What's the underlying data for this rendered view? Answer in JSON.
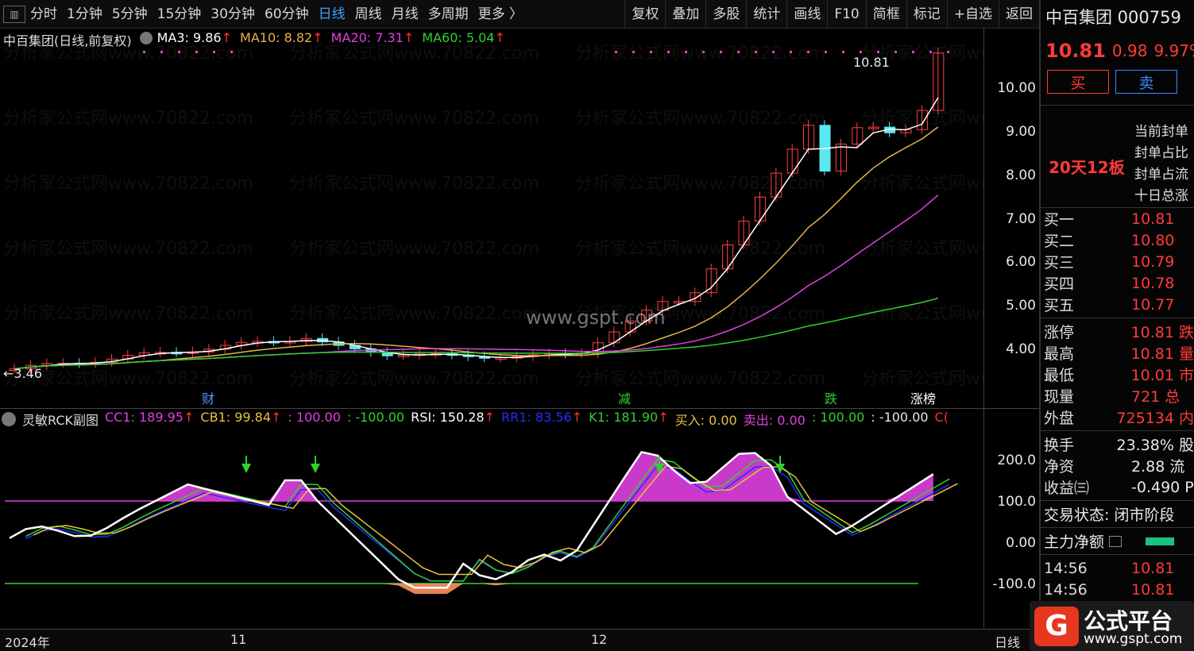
{
  "toolbar": {
    "periods": [
      "分时",
      "1分钟",
      "5分钟",
      "15分钟",
      "30分钟",
      "60分钟",
      "日线",
      "周线",
      "月线",
      "多周期",
      "更多 〉"
    ],
    "active_period": "日线",
    "right_buttons": [
      "复权",
      "叠加",
      "多股",
      "统计",
      "画线",
      "F10",
      "简框",
      "标记",
      "+自选",
      "返回"
    ]
  },
  "main_chart": {
    "title": "中百集团(日线,前复权)",
    "ma": [
      {
        "label": "MA3: 9.86",
        "color": "#ffffff"
      },
      {
        "label": "MA10: 8.82",
        "color": "#e8b14a"
      },
      {
        "label": "MA20: 7.31",
        "color": "#e040e0"
      },
      {
        "label": "MA60: 5.04",
        "color": "#30d030"
      }
    ],
    "arrow": "↑",
    "price_ticks": [
      "10.00",
      "9.00",
      "8.00",
      "7.00",
      "6.00",
      "5.00",
      "4.00"
    ],
    "high_label": "10.81",
    "low_label": "←3.46",
    "center_watermark": "www.gspt.com",
    "markers": [
      {
        "text": "财",
        "color": "#4aa0ff"
      },
      {
        "text": "减",
        "color": "#30d030"
      },
      {
        "text": "跌",
        "color": "#30d030"
      },
      {
        "text": "涨榜",
        "color": "#ffffff"
      }
    ],
    "watermark": "分析家公式网www.70822.com"
  },
  "sub_chart": {
    "title": "灵敏RCK副图",
    "items": [
      {
        "label": "CC1: 189.95",
        "color": "#e040e0",
        "arrow": "↑"
      },
      {
        "label": "CB1: 99.84",
        "color": "#e8c040",
        "arrow": "↑"
      },
      {
        "label": ": 100.00",
        "color": "#e040e0",
        "arrow": ""
      },
      {
        "label": ": -100.00",
        "color": "#30d030",
        "arrow": ""
      },
      {
        "label": "RSI: 150.28",
        "color": "#ffffff",
        "arrow": "↑"
      },
      {
        "label": "RR1: 83.56",
        "color": "#2a2aff",
        "arrow": "↑"
      },
      {
        "label": "K1: 181.90",
        "color": "#30d030",
        "arrow": "↑"
      },
      {
        "label": "买入: 0.00",
        "color": "#e8c040",
        "arrow": ""
      },
      {
        "label": "卖出: 0.00",
        "color": "#e040e0",
        "arrow": ""
      },
      {
        "label": ": 100.00",
        "color": "#30d030",
        "arrow": ""
      },
      {
        "label": ": -100.00",
        "color": "#e8e8e8",
        "arrow": ""
      },
      {
        "label": "C(",
        "color": "#ff3030",
        "arrow": ""
      }
    ],
    "ticks": [
      "200.0",
      "100.0",
      "0.00",
      "-100.0"
    ]
  },
  "bottom": {
    "year": "2024年",
    "m1": "11",
    "m2": "12",
    "period": "日线"
  },
  "quote": {
    "name": "中百集团 000759",
    "price": "10.81",
    "change": "0.98",
    "pct": "9.97%",
    "buy": "买",
    "sell": "卖",
    "board": "20天12板",
    "limit_lines": [
      "当前封单",
      "封单占比",
      "封单占流",
      "十日总涨"
    ],
    "bids": [
      {
        "k": "买一",
        "v": "10.81"
      },
      {
        "k": "买二",
        "v": "10.80"
      },
      {
        "k": "买三",
        "v": "10.79"
      },
      {
        "k": "买四",
        "v": "10.78"
      },
      {
        "k": "买五",
        "v": "10.77"
      }
    ],
    "stats1": [
      {
        "k": "涨停",
        "v": "10.81 跌"
      },
      {
        "k": "最高",
        "v": "10.81 量"
      },
      {
        "k": "最低",
        "v": "10.01 市"
      },
      {
        "k": "现量",
        "v": "721 总"
      },
      {
        "k": "外盘",
        "v": "725134 内"
      }
    ],
    "stats2": [
      {
        "k": "换手",
        "v": "23.38% 股"
      },
      {
        "k": "净资",
        "v": "2.88 流"
      },
      {
        "k": "收益㈢",
        "v": "-0.490 P"
      }
    ],
    "status": "交易状态: 闭市阶段",
    "flow": "主力净额",
    "ticks": [
      {
        "t": "14:56",
        "v": "10.81"
      },
      {
        "t": "14:56",
        "v": "10.81"
      }
    ]
  },
  "logo": {
    "g": "G",
    "t1": "公式平台",
    "t2": "www.gspt.com"
  }
}
